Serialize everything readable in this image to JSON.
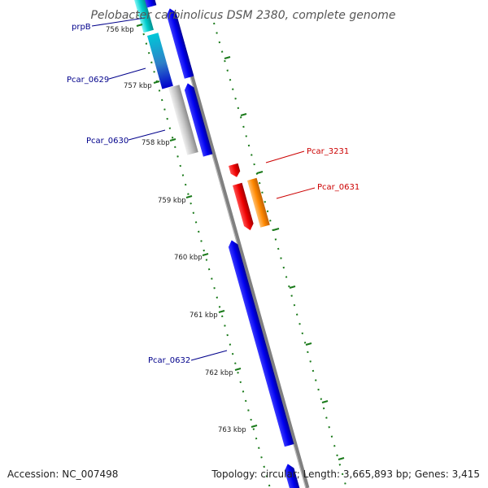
{
  "title": "Pelobacter carbinolicus DSM 2380, complete genome",
  "scale_labels": [
    "756 kbp",
    "757 kbp",
    "758 kbp",
    "759 kbp",
    "760 kbp",
    "761 kbp",
    "762 kbp",
    "763 kbp"
  ],
  "genes": {
    "prpB": "prpB",
    "pcar_0629": "Pcar_0629",
    "pcar_0630": "Pcar_0630",
    "pcar_3231": "Pcar_3231",
    "pcar_0631": "Pcar_0631",
    "pcar_0632": "Pcar_0632"
  },
  "footer": {
    "accession": "Accession: NC_007498",
    "summary": "Topology: circular; Length: 3,665,893 bp; Genes: 3,415"
  },
  "colors": {
    "backbone": "#808080",
    "blue_gene": "#0000ee",
    "cyan_gene": "#00cccc",
    "gray_gene": "#c0c0c0",
    "red_gene": "#ee0000",
    "orange_gene": "#ff8800",
    "tick_green": "#1a7a1a",
    "left_label": "#00008b",
    "right_label": "#cc0000"
  }
}
